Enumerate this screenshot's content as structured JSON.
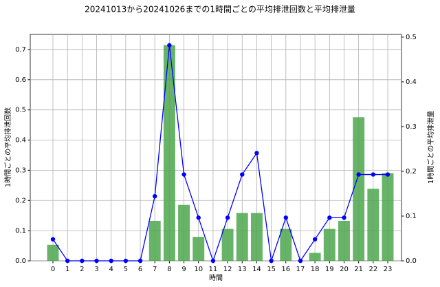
{
  "chart_data": {
    "type": "combo",
    "title": "20241013から20241026までの1時間ごとの平均排泄回数と平均排泄量",
    "x_label": "時間",
    "y_label": "1時間ごとの平均排泄回数",
    "y2_label": "1時間ごとの平均排泄量",
    "y_label_color": "#0000ff",
    "y2_label_color": "#008000",
    "categories": [
      "0",
      "1",
      "2",
      "3",
      "4",
      "5",
      "6",
      "7",
      "8",
      "9",
      "10",
      "11",
      "12",
      "13",
      "14",
      "15",
      "16",
      "17",
      "18",
      "19",
      "20",
      "21",
      "22",
      "23"
    ],
    "series": [
      {
        "name": "平均排泄量",
        "type": "bar",
        "axis": "y2",
        "color": "#4ca64c",
        "values": [
          0.0357,
          0,
          0,
          0,
          0,
          0,
          0,
          0.0893,
          0.482,
          0.125,
          0.0536,
          0,
          0.0714,
          0.107,
          0.107,
          0,
          0.0714,
          0,
          0.0179,
          0.0714,
          0.0893,
          0.321,
          0.161,
          0.196
        ]
      },
      {
        "name": "平均排泄回数",
        "type": "line",
        "axis": "y",
        "color": "#0000ff",
        "values": [
          0.0714,
          0,
          0,
          0,
          0,
          0,
          0,
          0.214,
          0.714,
          0.286,
          0.143,
          0,
          0.143,
          0.286,
          0.357,
          0,
          0.143,
          0,
          0.0714,
          0.143,
          0.143,
          0.286,
          0.286,
          0.286
        ]
      }
    ],
    "ylim": [
      0,
      0.75
    ],
    "yticks": [
      {
        "value": 0,
        "label": "0.0"
      },
      {
        "value": 0.1,
        "label": "0.1"
      },
      {
        "value": 0.2,
        "label": "0.2"
      },
      {
        "value": 0.3,
        "label": "0.3"
      },
      {
        "value": 0.4,
        "label": "0.4"
      },
      {
        "value": 0.5,
        "label": "0.5"
      },
      {
        "value": 0.6,
        "label": "0.6"
      },
      {
        "value": 0.7,
        "label": "0.7"
      }
    ],
    "y2lim": [
      0,
      0.506
    ],
    "y2ticks": [
      {
        "value": 0,
        "label": "0.0"
      },
      {
        "value": 0.1,
        "label": "0.1"
      },
      {
        "value": 0.2,
        "label": "0.2"
      },
      {
        "value": 0.3,
        "label": "0.3"
      },
      {
        "value": 0.4,
        "label": "0.4"
      },
      {
        "value": 0.5,
        "label": "0.5"
      }
    ],
    "grid": true
  }
}
